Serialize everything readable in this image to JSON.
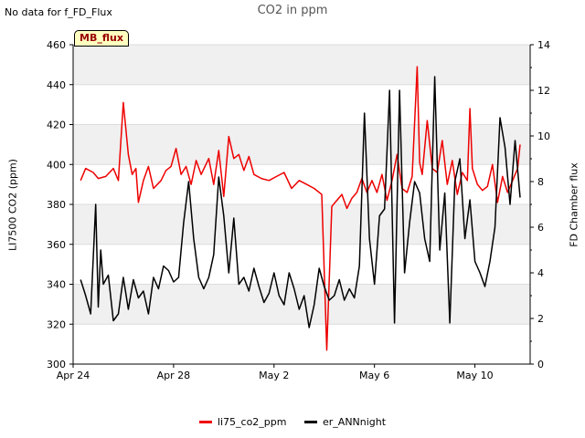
{
  "header": {
    "nodata_text": "No data for f_FD_Flux",
    "title": "CO2 in ppm",
    "badge": "MB_flux"
  },
  "chart_data": {
    "type": "line",
    "title": "CO2 in ppm",
    "xlabel": "",
    "ylabel_left": "LI7500 CO2 (ppm)",
    "ylabel_right": "FD Chamber flux",
    "x_tick_labels": [
      "Apr 24",
      "Apr 28",
      "May 2",
      "May 6",
      "May 10"
    ],
    "x_tick_days": [
      0,
      4,
      8,
      12,
      16
    ],
    "xlim_days": [
      0,
      18.2
    ],
    "ylim_left": [
      300,
      460
    ],
    "yticks_left": [
      300,
      320,
      340,
      360,
      380,
      400,
      420,
      440,
      460
    ],
    "ylim_right": [
      0,
      14
    ],
    "yticks_right": [
      0,
      2,
      4,
      6,
      8,
      10,
      12,
      14
    ],
    "grid": true,
    "legend_position": "bottom",
    "series": [
      {
        "name": "li75_co2_ppm",
        "axis": "left",
        "color": "#ee0000",
        "x": [
          0.3,
          0.5,
          0.8,
          1.0,
          1.3,
          1.6,
          1.8,
          2.0,
          2.2,
          2.35,
          2.5,
          2.6,
          2.8,
          3.0,
          3.2,
          3.5,
          3.7,
          3.9,
          4.1,
          4.3,
          4.5,
          4.7,
          4.9,
          5.1,
          5.4,
          5.6,
          5.8,
          6.0,
          6.2,
          6.4,
          6.6,
          6.8,
          7.0,
          7.2,
          7.5,
          7.8,
          8.1,
          8.4,
          8.7,
          9.0,
          9.3,
          9.6,
          9.9,
          10.1,
          10.3,
          10.5,
          10.7,
          10.9,
          11.1,
          11.3,
          11.5,
          11.7,
          11.9,
          12.1,
          12.3,
          12.5,
          12.7,
          12.9,
          13.1,
          13.3,
          13.5,
          13.7,
          13.8,
          13.9,
          14.1,
          14.3,
          14.5,
          14.7,
          14.9,
          15.1,
          15.3,
          15.5,
          15.7,
          15.8,
          15.9,
          16.1,
          16.3,
          16.5,
          16.7,
          16.9,
          17.1,
          17.3,
          17.5,
          17.7,
          17.8
        ],
        "values": [
          392,
          398,
          396,
          393,
          394,
          398,
          392,
          431,
          405,
          395,
          398,
          381,
          392,
          399,
          388,
          392,
          397,
          399,
          408,
          395,
          399,
          390,
          402,
          395,
          403,
          390,
          407,
          384,
          414,
          403,
          405,
          397,
          404,
          395,
          393,
          392,
          394,
          396,
          388,
          392,
          390,
          388,
          385,
          307,
          379,
          382,
          385,
          378,
          383,
          386,
          393,
          386,
          392,
          386,
          395,
          382,
          392,
          405,
          388,
          386,
          394,
          449,
          401,
          395,
          422,
          398,
          396,
          412,
          390,
          402,
          385,
          396,
          392,
          428,
          398,
          390,
          387,
          389,
          400,
          381,
          394,
          386,
          392,
          398,
          410
        ]
      },
      {
        "name": "er_ANNnight",
        "axis": "right",
        "color": "#000000",
        "x": [
          0.3,
          0.5,
          0.7,
          0.9,
          1.0,
          1.1,
          1.2,
          1.4,
          1.6,
          1.8,
          2.0,
          2.2,
          2.4,
          2.6,
          2.8,
          3.0,
          3.2,
          3.4,
          3.6,
          3.8,
          4.0,
          4.2,
          4.4,
          4.6,
          4.8,
          5.0,
          5.2,
          5.4,
          5.6,
          5.8,
          6.0,
          6.2,
          6.4,
          6.6,
          6.8,
          7.0,
          7.2,
          7.4,
          7.6,
          7.8,
          8.0,
          8.2,
          8.4,
          8.6,
          8.8,
          9.0,
          9.2,
          9.4,
          9.6,
          9.8,
          10.0,
          10.2,
          10.4,
          10.6,
          10.8,
          11.0,
          11.2,
          11.4,
          11.6,
          11.8,
          12.0,
          12.2,
          12.4,
          12.6,
          12.8,
          13.0,
          13.2,
          13.4,
          13.6,
          13.8,
          14.0,
          14.2,
          14.4,
          14.6,
          14.8,
          15.0,
          15.2,
          15.4,
          15.6,
          15.8,
          16.0,
          16.2,
          16.4,
          16.6,
          16.8,
          17.0,
          17.2,
          17.4,
          17.6,
          17.8
        ],
        "values": [
          3.7,
          3.0,
          2.2,
          7.0,
          2.5,
          5.0,
          3.5,
          3.9,
          1.9,
          2.2,
          3.8,
          2.4,
          3.7,
          2.9,
          3.2,
          2.2,
          3.8,
          3.3,
          4.3,
          4.1,
          3.6,
          3.8,
          6.2,
          8.0,
          5.5,
          3.8,
          3.3,
          3.8,
          4.8,
          8.2,
          6.5,
          4.0,
          6.4,
          3.5,
          3.8,
          3.2,
          4.2,
          3.4,
          2.7,
          3.1,
          4.0,
          3.0,
          2.6,
          4.0,
          3.3,
          2.4,
          3.0,
          1.6,
          2.6,
          4.2,
          3.4,
          2.8,
          3.0,
          3.7,
          2.8,
          3.3,
          2.9,
          4.3,
          11.0,
          5.5,
          3.5,
          6.5,
          6.8,
          12.0,
          1.8,
          12.0,
          4.0,
          6.2,
          8.0,
          7.5,
          5.5,
          4.5,
          12.6,
          5.0,
          7.5,
          1.8,
          8.0,
          9.0,
          5.5,
          7.2,
          4.5,
          4.0,
          3.4,
          4.5,
          6.0,
          10.8,
          9.5,
          7.0,
          9.8,
          7.3
        ]
      }
    ]
  }
}
